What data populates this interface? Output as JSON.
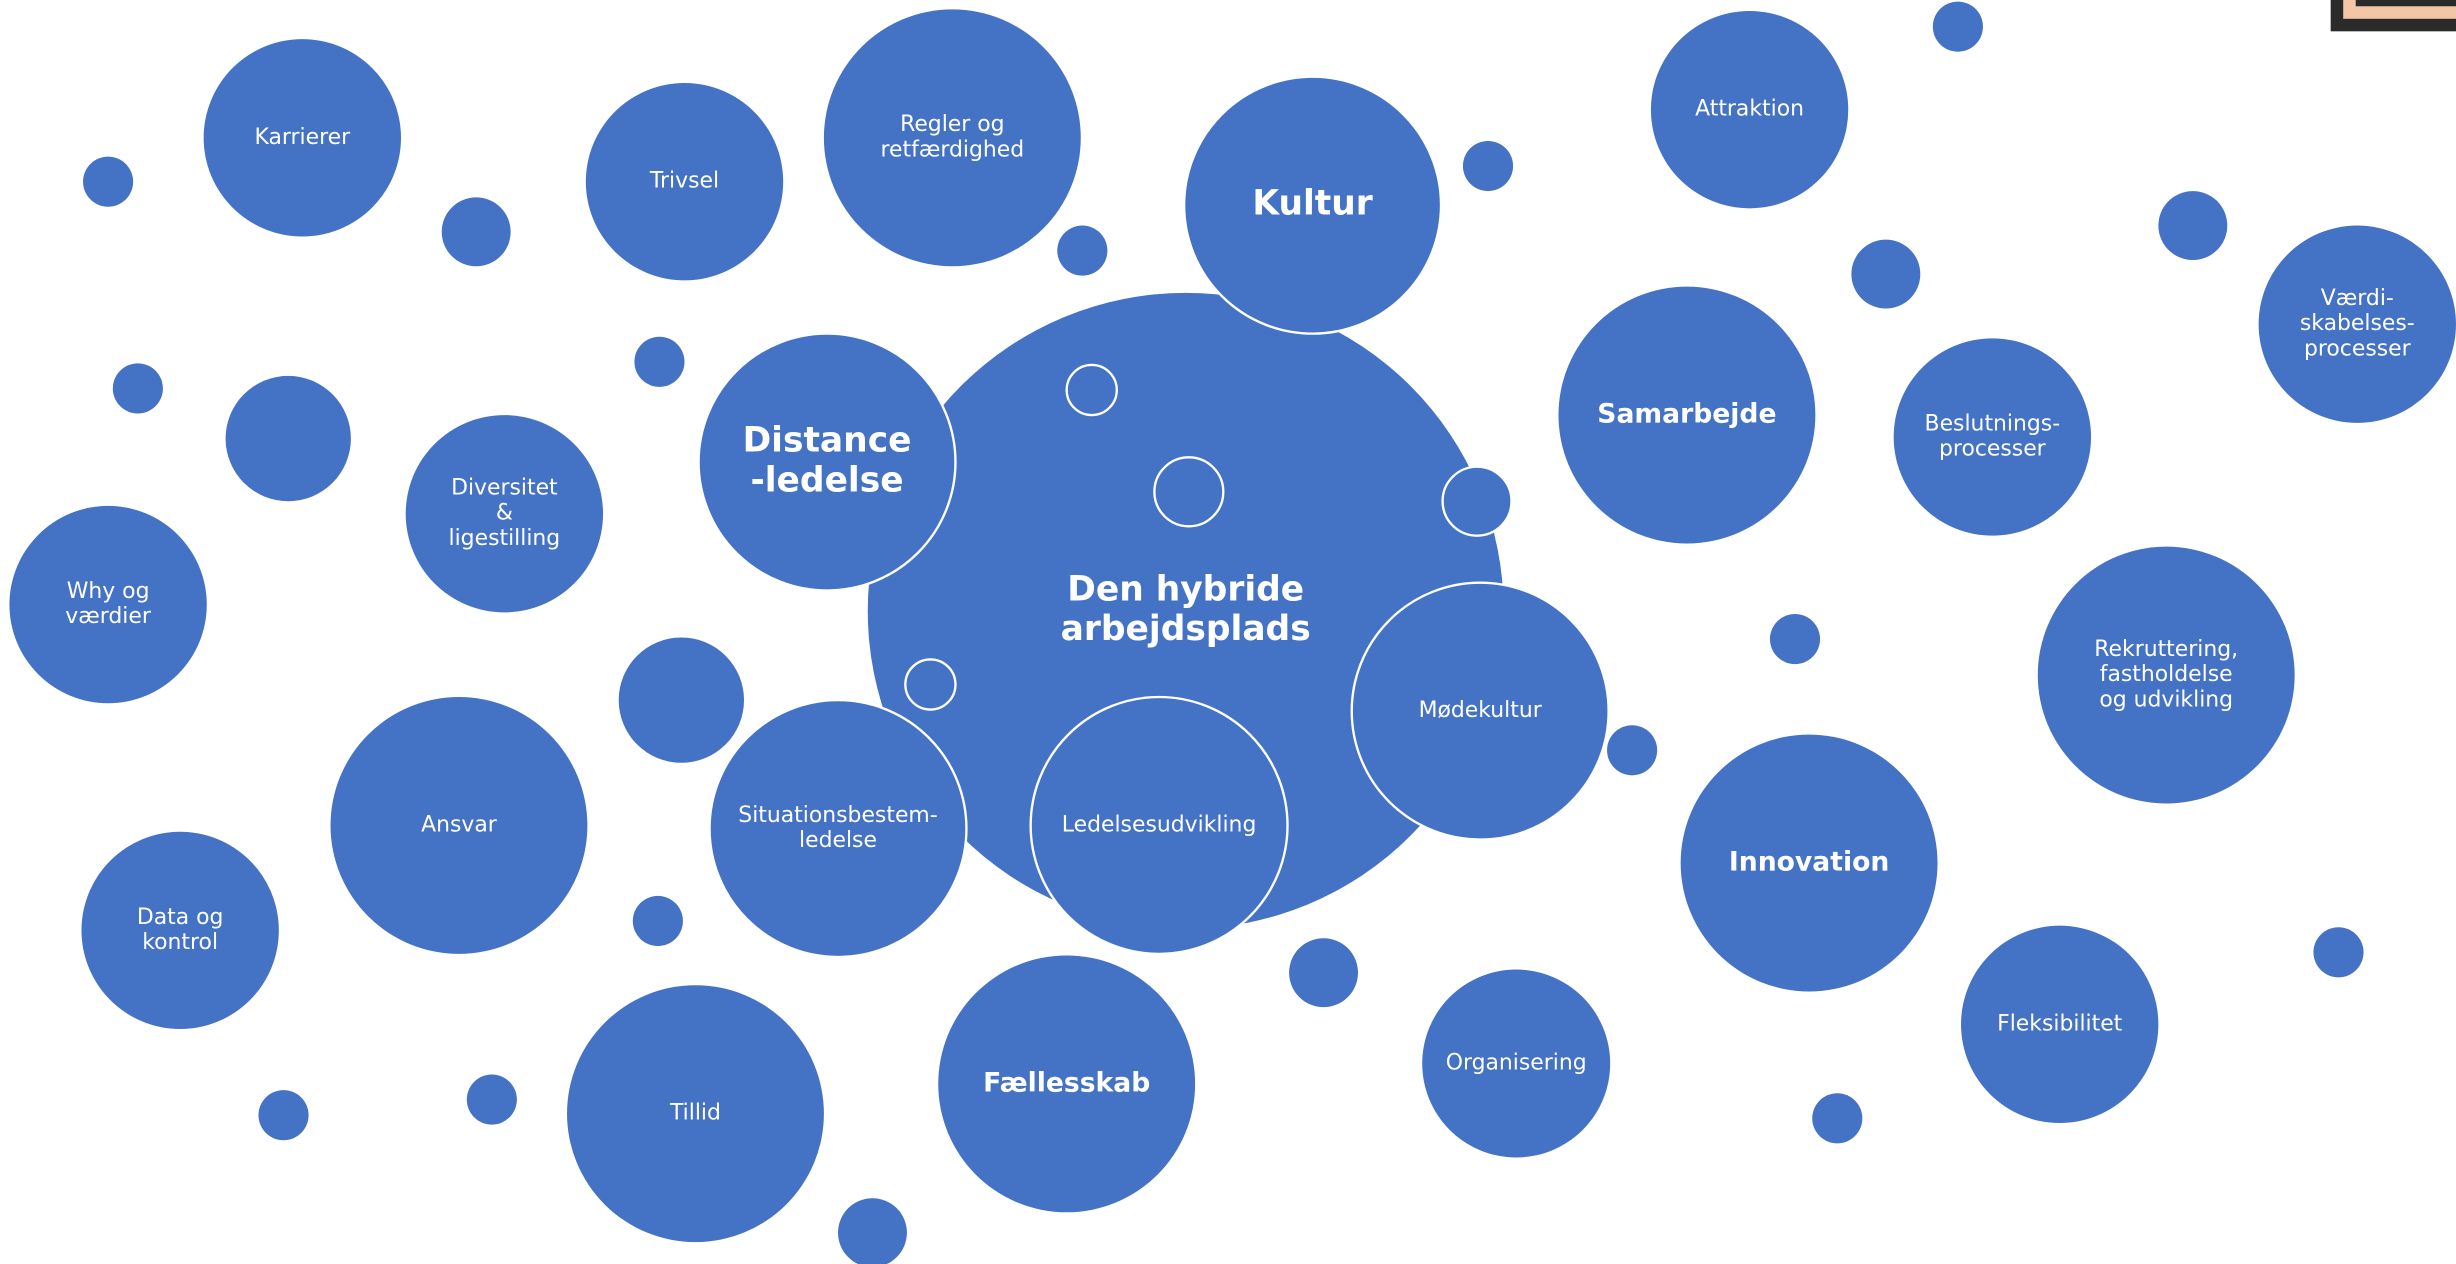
{
  "nodes": [
    {
      "lines": [
        "Den hybride",
        "arbejdsplads"
      ]
    },
    {
      "lines": [
        "Kultur"
      ]
    },
    {
      "lines": [
        "Distance",
        "-ledelse"
      ]
    },
    {
      "lines": [
        "Mødekultur"
      ]
    },
    {
      "lines": [
        "Ledelsesudvikling"
      ]
    },
    {
      "lines": [
        "Situationsbestem-",
        "ledelse"
      ]
    },
    {
      "lines": [
        "Karrierer"
      ]
    },
    {
      "lines": [
        "Trivsel"
      ]
    },
    {
      "lines": [
        "Regler og",
        "retfærdighed"
      ]
    },
    {
      "lines": [
        "Attraktion"
      ]
    },
    {
      "lines": [
        "Samarbejde"
      ]
    },
    {
      "lines": [
        "Beslutnings-",
        "processer"
      ]
    },
    {
      "lines": [
        "Værdi-",
        "skabelses-",
        "processer"
      ]
    },
    {
      "lines": [
        "Rekruttering,",
        "fastholdelse",
        "og udvikling"
      ]
    },
    {
      "lines": [
        "Innovation"
      ]
    },
    {
      "lines": [
        "Fleksibilitet"
      ]
    },
    {
      "lines": [
        "Organisering"
      ]
    },
    {
      "lines": [
        "Fællesskab"
      ]
    },
    {
      "lines": [
        "Tillid"
      ]
    },
    {
      "lines": [
        "Ansvar"
      ]
    },
    {
      "lines": [
        "Data og",
        "kontrol"
      ]
    },
    {
      "lines": [
        "Why og",
        "værdier"
      ]
    },
    {
      "lines": [
        "Diversitet",
        "&",
        "ligestilling"
      ]
    }
  ]
}
